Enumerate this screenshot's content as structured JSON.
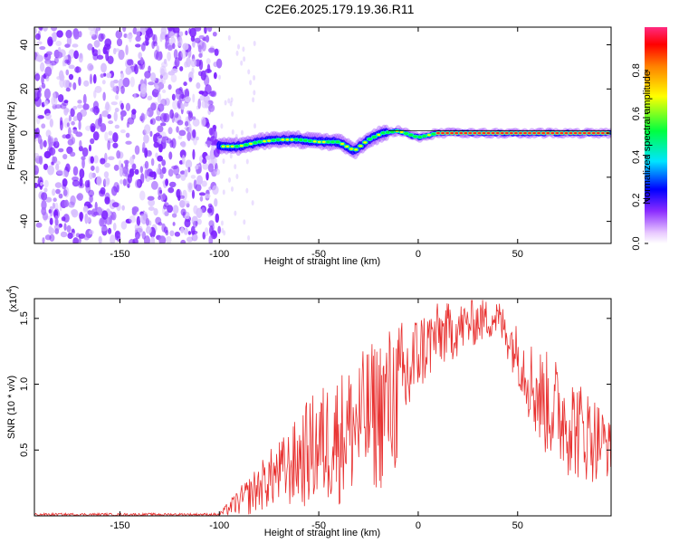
{
  "title": "C2E6.2025.179.19.36.R11",
  "colors": {
    "line": "#e8302f",
    "axis": "#000000"
  },
  "chart_data": [
    {
      "type": "heatmap",
      "xlabel": "Height of straight line (km)",
      "ylabel": "Frequency (Hz)",
      "xlim": [
        -193,
        97
      ],
      "ylim": [
        -50,
        48
      ],
      "xticks": [
        -150,
        -100,
        -50,
        0,
        50
      ],
      "yticks": [
        -40,
        -20,
        0,
        20,
        40
      ],
      "xtick_labels": [
        "-150",
        "-100",
        "-50",
        "0",
        "50"
      ],
      "ytick_labels": [
        "-40",
        "-20",
        "0",
        "20",
        "40"
      ],
      "colorbar": {
        "label": "Normalized spectral amplitude",
        "range": [
          0,
          1
        ],
        "ticks": [
          0.0,
          0.2,
          0.4,
          0.6,
          0.8
        ],
        "tick_labels": [
          "0.0",
          "0.2",
          "0.4",
          "0.6",
          "0.8"
        ]
      },
      "noise_region_x": [
        -193,
        -100
      ],
      "signal_track": [
        {
          "x": -100,
          "y": -6
        },
        {
          "x": -90,
          "y": -6
        },
        {
          "x": -80,
          "y": -4
        },
        {
          "x": -70,
          "y": -3
        },
        {
          "x": -60,
          "y": -3
        },
        {
          "x": -50,
          "y": -4
        },
        {
          "x": -40,
          "y": -4
        },
        {
          "x": -32,
          "y": -8
        },
        {
          "x": -25,
          "y": -3
        },
        {
          "x": -18,
          "y": 0
        },
        {
          "x": -10,
          "y": 1
        },
        {
          "x": 0,
          "y": -2
        },
        {
          "x": 10,
          "y": 0
        },
        {
          "x": 20,
          "y": 0
        },
        {
          "x": 40,
          "y": 0
        },
        {
          "x": 60,
          "y": 0
        },
        {
          "x": 80,
          "y": 0
        },
        {
          "x": 97,
          "y": 0
        }
      ]
    },
    {
      "type": "line",
      "xlabel": "Height of straight line (km)",
      "ylabel": "SNR (10 * v/v)",
      "yscale_label": "(x10",
      "yscale_exp": "4",
      "xlim": [
        -193,
        97
      ],
      "ylim": [
        0,
        1.65
      ],
      "xticks": [
        -150,
        -100,
        -50,
        0,
        50
      ],
      "yticks": [
        0.5,
        1.0,
        1.5
      ],
      "xtick_labels": [
        "-150",
        "-100",
        "-50",
        "0",
        "50"
      ],
      "ytick_labels": [
        "0.5",
        "1.0",
        "1.5"
      ],
      "envelope": [
        {
          "x": -193,
          "low": 0.0,
          "high": 0.02
        },
        {
          "x": -100,
          "low": 0.0,
          "high": 0.02
        },
        {
          "x": -95,
          "low": 0.0,
          "high": 0.12
        },
        {
          "x": -85,
          "low": 0.0,
          "high": 0.3
        },
        {
          "x": -75,
          "low": 0.05,
          "high": 0.5
        },
        {
          "x": -65,
          "low": 0.05,
          "high": 0.65
        },
        {
          "x": -55,
          "low": 0.05,
          "high": 0.9
        },
        {
          "x": -45,
          "low": 0.05,
          "high": 1.05
        },
        {
          "x": -35,
          "low": 0.1,
          "high": 1.15
        },
        {
          "x": -25,
          "low": 0.15,
          "high": 1.3
        },
        {
          "x": -15,
          "low": 0.2,
          "high": 1.45
        },
        {
          "x": -8,
          "low": 0.35,
          "high": 1.5
        },
        {
          "x": 0,
          "low": 0.9,
          "high": 1.55
        },
        {
          "x": 10,
          "low": 1.1,
          "high": 1.62
        },
        {
          "x": 20,
          "low": 1.2,
          "high": 1.62
        },
        {
          "x": 30,
          "low": 1.3,
          "high": 1.65
        },
        {
          "x": 40,
          "low": 1.35,
          "high": 1.65
        },
        {
          "x": 50,
          "low": 1.0,
          "high": 1.45
        },
        {
          "x": 60,
          "low": 0.5,
          "high": 1.3
        },
        {
          "x": 70,
          "low": 0.35,
          "high": 1.2
        },
        {
          "x": 80,
          "low": 0.25,
          "high": 1.05
        },
        {
          "x": 90,
          "low": 0.25,
          "high": 0.9
        },
        {
          "x": 97,
          "low": 0.3,
          "high": 0.7
        }
      ]
    }
  ]
}
